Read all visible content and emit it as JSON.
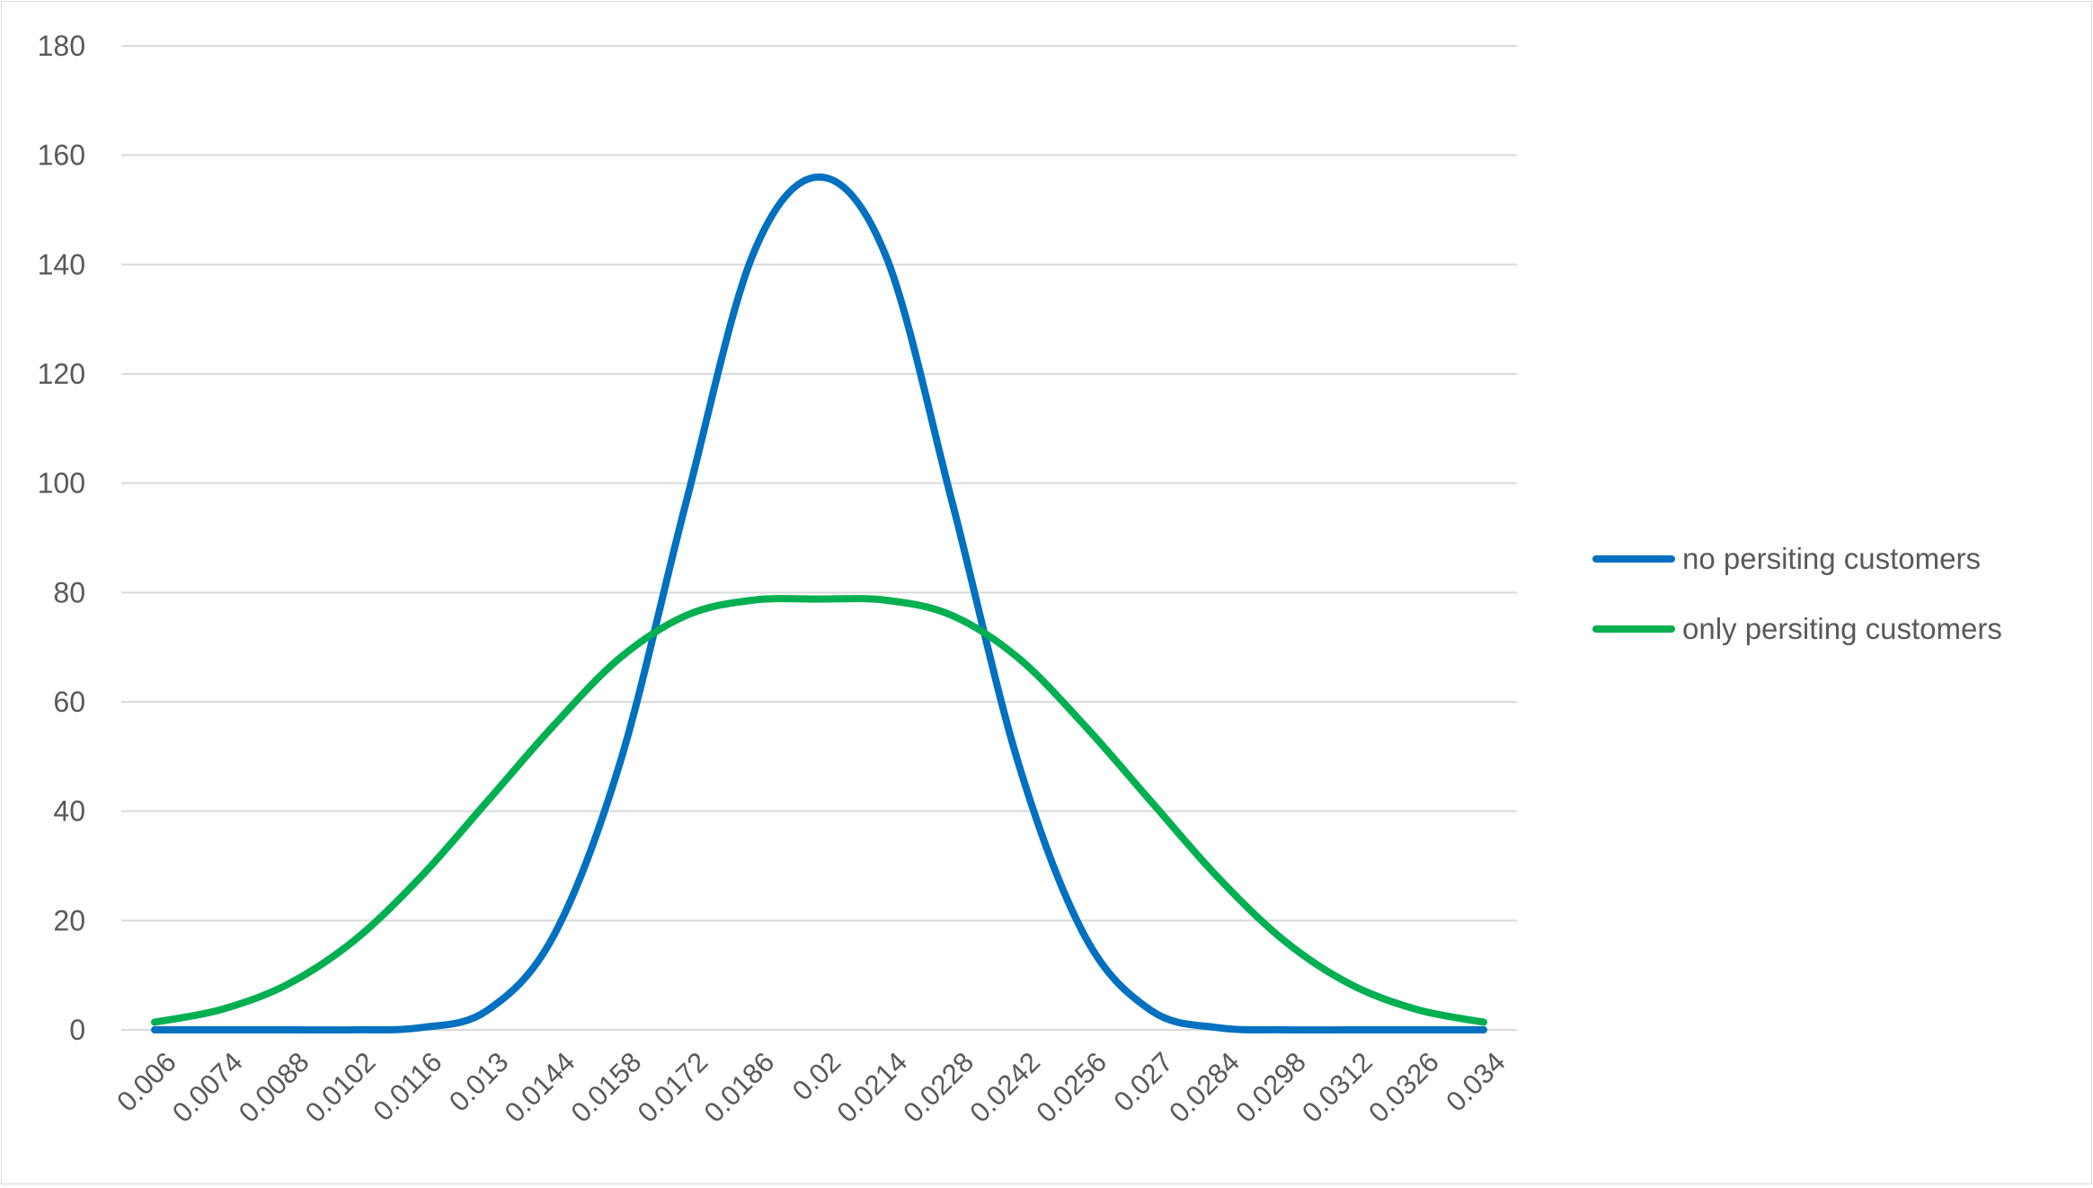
{
  "chart_data": {
    "type": "line",
    "title": "",
    "xlabel": "",
    "ylabel": "",
    "categories": [
      "0.006",
      "0.0074",
      "0.0088",
      "0.0102",
      "0.0116",
      "0.013",
      "0.0144",
      "0.0158",
      "0.0172",
      "0.0186",
      "0.02",
      "0.0214",
      "0.0228",
      "0.0242",
      "0.0256",
      "0.027",
      "0.0284",
      "0.0298",
      "0.0312",
      "0.0326",
      "0.034"
    ],
    "x": [
      0.006,
      0.0074,
      0.0088,
      0.0102,
      0.0116,
      0.013,
      0.0144,
      0.0158,
      0.0172,
      0.0186,
      0.02,
      0.0214,
      0.0228,
      0.0242,
      0.0256,
      0.027,
      0.0284,
      0.0298,
      0.0312,
      0.0326,
      0.034
    ],
    "ylim": [
      0,
      180
    ],
    "yticks": [
      0,
      20,
      40,
      60,
      80,
      100,
      120,
      140,
      160,
      180
    ],
    "grid": true,
    "legend_position": "right",
    "series": [
      {
        "name": "no persiting customers",
        "color": "#0070C0",
        "values": [
          0.0,
          0.0,
          0.0,
          0.0,
          0.4,
          3.5,
          17.1,
          48.7,
          96.6,
          141.7,
          156.0,
          141.7,
          96.6,
          48.7,
          17.1,
          3.5,
          0.4,
          0.0,
          0.0,
          0.0,
          0.0
        ]
      },
      {
        "name": "only persiting customers",
        "color": "#00B050",
        "values": [
          1.4,
          3.7,
          8.3,
          16.3,
          27.9,
          41.7,
          55.6,
          68.0,
          75.8,
          78.6,
          78.8,
          78.6,
          75.8,
          68.0,
          55.6,
          41.7,
          27.9,
          16.3,
          8.3,
          3.7,
          1.4
        ]
      }
    ]
  }
}
